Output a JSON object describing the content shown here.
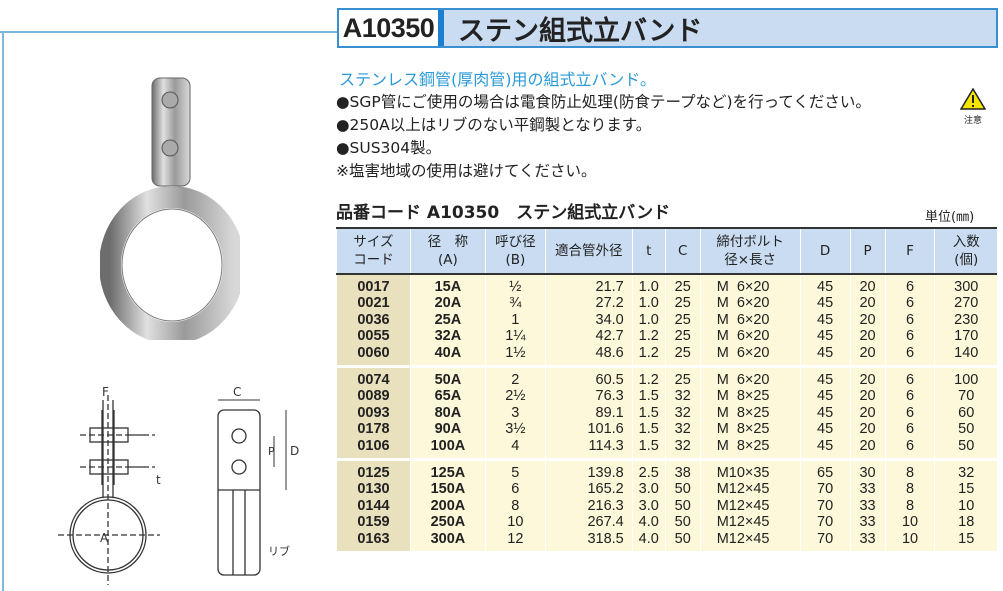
{
  "header": {
    "code": "A10350",
    "name": "ステン組式立バンド"
  },
  "lead": "ステンレス鋼管(厚肉管)用の組式立バンド。",
  "bullets": [
    "●SGP管にご使用の場合は電食防止処理(防食テープなど)を行ってください。",
    "●250A以上はリブのない平鋼製となります。",
    "●SUS304製。",
    "※塩害地域の使用は避けてください。"
  ],
  "warning": {
    "label": "注意",
    "icon": "warning-triangle-icon"
  },
  "subtitle": "品番コード A10350　ステン組式立バンド",
  "unit": "単位(㎜)",
  "diagram_labels": {
    "F": "F",
    "C": "C",
    "P": "P",
    "D": "D",
    "t": "t",
    "A": "A",
    "rib": "リブ"
  },
  "table": {
    "headers": [
      "サイズ\nコード",
      "径　称\n(A)",
      "呼び径\n(B)",
      "適合管外径",
      "t",
      "C",
      "締付ボルト\n径×長さ",
      "D",
      "P",
      "F",
      "入数\n(個)"
    ],
    "groups": [
      [
        [
          "0017",
          "15A",
          "½",
          "21.7",
          "1.0",
          "25",
          "M  6×20",
          "45",
          "20",
          "6",
          "300"
        ],
        [
          "0021",
          "20A",
          "¾",
          "27.2",
          "1.0",
          "25",
          "M  6×20",
          "45",
          "20",
          "6",
          "270"
        ],
        [
          "0036",
          "25A",
          "1",
          "34.0",
          "1.0",
          "25",
          "M  6×20",
          "45",
          "20",
          "6",
          "230"
        ],
        [
          "0055",
          "32A",
          "1¼",
          "42.7",
          "1.2",
          "25",
          "M  6×20",
          "45",
          "20",
          "6",
          "170"
        ],
        [
          "0060",
          "40A",
          "1½",
          "48.6",
          "1.2",
          "25",
          "M  6×20",
          "45",
          "20",
          "6",
          "140"
        ]
      ],
      [
        [
          "0074",
          "50A",
          "2",
          "60.5",
          "1.2",
          "25",
          "M  6×20",
          "45",
          "20",
          "6",
          "100"
        ],
        [
          "0089",
          "65A",
          "2½",
          "76.3",
          "1.5",
          "32",
          "M  8×25",
          "45",
          "20",
          "6",
          "70"
        ],
        [
          "0093",
          "80A",
          "3",
          "89.1",
          "1.5",
          "32",
          "M  8×25",
          "45",
          "20",
          "6",
          "60"
        ],
        [
          "0178",
          "90A",
          "3½",
          "101.6",
          "1.5",
          "32",
          "M  8×25",
          "45",
          "20",
          "6",
          "50"
        ],
        [
          "0106",
          "100A",
          "4",
          "114.3",
          "1.5",
          "32",
          "M  8×25",
          "45",
          "20",
          "6",
          "50"
        ]
      ],
      [
        [
          "0125",
          "125A",
          "5",
          "139.8",
          "2.5",
          "38",
          "M10×35",
          "65",
          "30",
          "8",
          "32"
        ],
        [
          "0130",
          "150A",
          "6",
          "165.2",
          "3.0",
          "50",
          "M12×45",
          "70",
          "33",
          "8",
          "15"
        ],
        [
          "0144",
          "200A",
          "8",
          "216.3",
          "3.0",
          "50",
          "M12×45",
          "70",
          "33",
          "8",
          "10"
        ],
        [
          "0159",
          "250A",
          "10",
          "267.4",
          "4.0",
          "50",
          "M12×45",
          "70",
          "33",
          "10",
          "18"
        ],
        [
          "0163",
          "300A",
          "12",
          "318.5",
          "4.0",
          "50",
          "M12×45",
          "70",
          "33",
          "10",
          "15"
        ]
      ]
    ]
  }
}
